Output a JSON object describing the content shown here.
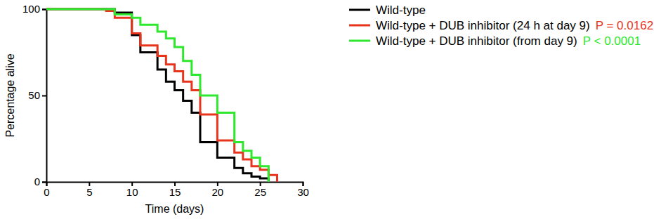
{
  "chart_data": {
    "type": "step",
    "x_label": "Time (days)",
    "y_label": "Percentage alive",
    "xlim": [
      0,
      30
    ],
    "xticks": [
      0,
      5,
      10,
      15,
      20,
      25,
      30
    ],
    "ylim": [
      0,
      100
    ],
    "yticks": [
      0,
      50,
      100
    ],
    "legend": "right",
    "series": [
      {
        "name": "Wild-type",
        "color": "#000000",
        "x": [
          0,
          8,
          10,
          11,
          13,
          14,
          15,
          16,
          17,
          18,
          20,
          22,
          23,
          24,
          25,
          26
        ],
        "values": [
          100,
          98,
          85,
          75,
          65,
          58,
          53,
          47,
          40,
          23,
          14,
          8,
          5,
          3,
          2,
          0
        ]
      },
      {
        "name": "Wild-type + DUB inhibitor (24 h at day 9)",
        "color": "#e8341c",
        "annotation": "P = 0.0162",
        "x": [
          0,
          7,
          8,
          10,
          11,
          13,
          14,
          15,
          16,
          17,
          18,
          20,
          22,
          23,
          24,
          25,
          26,
          27
        ],
        "values": [
          100,
          99,
          95,
          86,
          79,
          73,
          68,
          64,
          58,
          53,
          39,
          24,
          17,
          13,
          9,
          7,
          4,
          0
        ]
      },
      {
        "name": "Wild-type + DUB inhibitor (from day 9)",
        "color": "#2ee82e",
        "annotation": "P < 0.0001",
        "x": [
          0,
          8,
          10,
          11,
          13,
          14,
          15,
          16,
          17,
          18,
          20,
          22,
          23,
          24,
          25,
          26
        ],
        "values": [
          100,
          97,
          95,
          91,
          87,
          83,
          78,
          70,
          62,
          50,
          40,
          23,
          18,
          14,
          9,
          0
        ]
      }
    ]
  }
}
